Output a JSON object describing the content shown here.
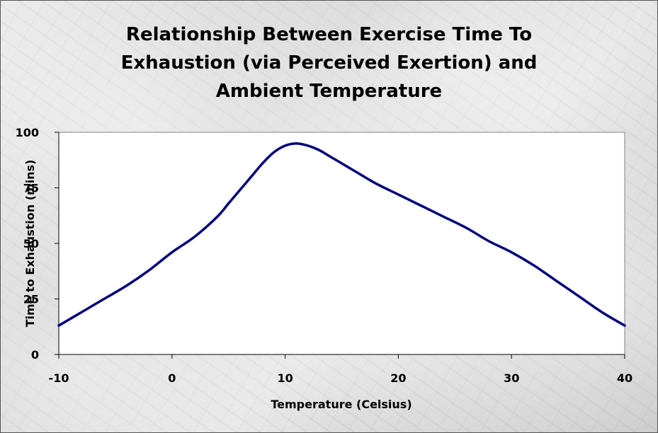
{
  "chart_data": {
    "type": "line",
    "title": "Relationship Between Exercise Time To\nExhaustion (via Perceived Exertion) and\nAmbient Temperature",
    "xlabel": "Temperature (Celsius)",
    "ylabel": "Time to Exhaustion (mins)",
    "xlim": [
      -10,
      40
    ],
    "ylim": [
      0,
      100
    ],
    "xticks": [
      -10,
      0,
      10,
      20,
      30,
      40
    ],
    "yticks": [
      0,
      25,
      50,
      75,
      100
    ],
    "grid": false,
    "legend": "none",
    "series": [
      {
        "color": "#000080",
        "x": [
          -10,
          -8,
          -6,
          -4,
          -2,
          0,
          2,
          4,
          5,
          6,
          7,
          8,
          9,
          10,
          11,
          12,
          13,
          14,
          16,
          18,
          20,
          22,
          24,
          26,
          28,
          30,
          32,
          34,
          36,
          38,
          40
        ],
        "y": [
          13,
          19,
          25,
          31,
          38,
          46,
          53,
          62,
          68,
          74,
          80,
          86,
          91,
          94,
          95,
          94,
          92,
          89,
          83,
          77,
          72,
          67,
          62,
          57,
          51,
          46,
          40,
          33,
          26,
          19,
          13
        ]
      }
    ]
  }
}
